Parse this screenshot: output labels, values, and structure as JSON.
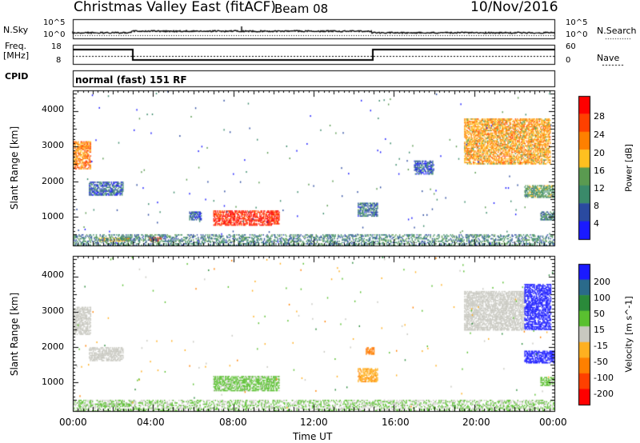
{
  "header": {
    "station": "Christmas Valley East (fitACF)",
    "beam": "Beam 08",
    "date": "10/Nov/2016"
  },
  "info_panel": {
    "nsky_label": "N.Sky",
    "nsearch_label": "N.Search",
    "noise_ticks": [
      "10^5",
      "10^0"
    ],
    "freq_label_line1": "Freq.",
    "freq_label_line2": "[MHz]",
    "freq_ticks": [
      "18",
      "8"
    ],
    "nave_label": "Nave",
    "nave_ticks": [
      "60",
      "0"
    ],
    "cpid_label": "CPID",
    "cpid_value": "normal (fast) 151 RF"
  },
  "colors": {
    "power_scale": [
      "#1a1aff",
      "#2a4aa0",
      "#3a8a6a",
      "#5a9a50",
      "#ffc020",
      "#ff8000",
      "#ff4000",
      "#ff0000"
    ],
    "velocity_scale": [
      "#ff0000",
      "#ff4000",
      "#ff8000",
      "#ffb020",
      "#c8c8c0",
      "#5ac030",
      "#2a8a3a",
      "#2a6a8a",
      "#1a1aff"
    ],
    "ground_scatter": "#c8c8c0"
  },
  "chart_data": [
    {
      "type": "heatmap",
      "name": "power",
      "xlabel": "",
      "ylabel": "Slant Range [km]",
      "x_ticks": [
        "00:00",
        "04:00",
        "08:00",
        "12:00",
        "16:00",
        "20:00",
        "00:00"
      ],
      "x_range_hours": [
        0,
        24
      ],
      "y_ticks": [
        "1000",
        "2000",
        "3000",
        "4000"
      ],
      "y_range_km": [
        180,
        4600
      ],
      "colorbar_label": "Power [dB]",
      "colorbar_ticks": [
        "28",
        "24",
        "20",
        "16",
        "12",
        "8",
        "4"
      ],
      "colorbar_range": [
        0,
        32
      ],
      "regions": [
        {
          "t0": 0.0,
          "t1": 0.9,
          "r0": 2350,
          "r1": 3150,
          "value": 22
        },
        {
          "t0": 0.8,
          "t1": 2.5,
          "r0": 1600,
          "r1": 2000,
          "value": 7
        },
        {
          "t0": 1.3,
          "t1": 2.8,
          "r0": 300,
          "r1": 400,
          "value": 18
        },
        {
          "t0": 3.8,
          "t1": 4.4,
          "r0": 280,
          "r1": 420,
          "value": 28
        },
        {
          "t0": 7.0,
          "t1": 10.3,
          "r0": 750,
          "r1": 1180,
          "value": 28
        },
        {
          "t0": 0.0,
          "t1": 24.0,
          "r0": 200,
          "r1": 500,
          "value": 10
        },
        {
          "t0": 14.2,
          "t1": 15.2,
          "r0": 1000,
          "r1": 1400,
          "value": 8
        },
        {
          "t0": 19.5,
          "t1": 23.8,
          "r0": 2500,
          "r1": 3800,
          "value": 20
        },
        {
          "t0": 22.5,
          "t1": 24.0,
          "r0": 1550,
          "r1": 1900,
          "value": 12
        },
        {
          "t0": 23.3,
          "t1": 24.0,
          "r0": 900,
          "r1": 1150,
          "value": 10
        },
        {
          "t0": 17.0,
          "t1": 18.0,
          "r0": 2200,
          "r1": 2600,
          "value": 6
        },
        {
          "t0": 5.8,
          "t1": 6.4,
          "r0": 900,
          "r1": 1150,
          "value": 6
        }
      ]
    },
    {
      "type": "heatmap",
      "name": "velocity",
      "xlabel": "Time UT",
      "ylabel": "Slant Range [km]",
      "x_ticks": [
        "00:00",
        "04:00",
        "08:00",
        "12:00",
        "16:00",
        "20:00",
        "00:00"
      ],
      "x_range_hours": [
        0,
        24
      ],
      "y_ticks": [
        "1000",
        "2000",
        "3000",
        "4000"
      ],
      "y_range_km": [
        180,
        4600
      ],
      "colorbar_label": "Velocity [m s^-1]",
      "colorbar_ticks": [
        "200",
        "100",
        "50",
        "15",
        "-15",
        "-50",
        "-100",
        "-200"
      ],
      "colorbar_range": [
        -250,
        250
      ],
      "regions": [
        {
          "t0": 0.0,
          "t1": 0.9,
          "r0": 2350,
          "r1": 3150,
          "value": 0
        },
        {
          "t0": 0.8,
          "t1": 2.5,
          "r0": 1600,
          "r1": 2000,
          "value": 0
        },
        {
          "t0": 1.3,
          "t1": 2.8,
          "r0": 300,
          "r1": 400,
          "value": 40
        },
        {
          "t0": 7.0,
          "t1": 10.3,
          "r0": 750,
          "r1": 1180,
          "value": 40
        },
        {
          "t0": 0.0,
          "t1": 24.0,
          "r0": 200,
          "r1": 500,
          "value": 30
        },
        {
          "t0": 14.2,
          "t1": 15.2,
          "r0": 1000,
          "r1": 1400,
          "value": -70
        },
        {
          "t0": 19.5,
          "t1": 22.5,
          "r0": 2500,
          "r1": 3600,
          "value": 0
        },
        {
          "t0": 22.5,
          "t1": 23.8,
          "r0": 2500,
          "r1": 3800,
          "value": 220
        },
        {
          "t0": 22.5,
          "t1": 24.0,
          "r0": 1550,
          "r1": 1900,
          "value": 220
        },
        {
          "t0": 23.3,
          "t1": 24.0,
          "r0": 900,
          "r1": 1150,
          "value": 40
        },
        {
          "t0": 14.6,
          "t1": 15.0,
          "r0": 1800,
          "r1": 2000,
          "value": -120
        }
      ]
    }
  ]
}
